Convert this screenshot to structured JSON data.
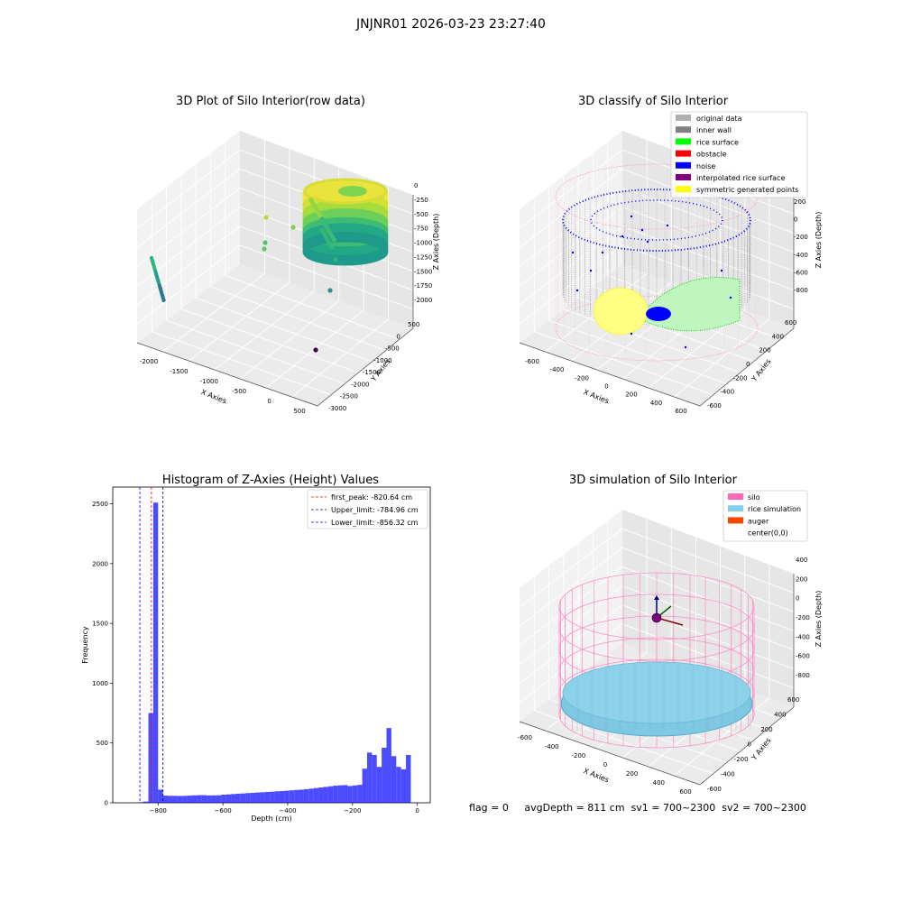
{
  "suptitle": "JNJNR01 2026-03-23 23:27:40",
  "panels": {
    "raw": {
      "title": "3D Plot of Silo Interior(row data)",
      "xlabel": "X Axies",
      "ylabel": "Y Axies",
      "zlabel": "Z Axies (Depth)",
      "xticks": [
        "-2000",
        "-1500",
        "-1000",
        "-500",
        "0",
        "500"
      ],
      "yticks": [
        "500",
        "0",
        "-500",
        "-1000",
        "-1500",
        "-2000",
        "-2500",
        "-3000"
      ],
      "zticks": [
        "0",
        "-250",
        "-500",
        "-750",
        "-1000",
        "-1250",
        "-1500",
        "-1750",
        "-2000"
      ]
    },
    "classify": {
      "title": "3D classify of Silo Interior",
      "xlabel": "X Axies",
      "ylabel": "Y Axies",
      "zlabel": "Z Axies (Depth)",
      "xticks": [
        "-600",
        "-400",
        "-200",
        "0",
        "200",
        "400",
        "600"
      ],
      "yticks": [
        "600",
        "400",
        "200",
        "0",
        "-200",
        "-400",
        "-600"
      ],
      "zticks": [
        "200",
        "0",
        "-200",
        "-400",
        "-600",
        "-800"
      ],
      "legend": [
        {
          "label": "original data",
          "color": "#b0b0b0"
        },
        {
          "label": "inner wall",
          "color": "#808080"
        },
        {
          "label": "rice surface",
          "color": "#00ff00"
        },
        {
          "label": "obstacle",
          "color": "#ff0000"
        },
        {
          "label": "noise",
          "color": "#0000ff"
        },
        {
          "label": "interpolated rice surface",
          "color": "#800080"
        },
        {
          "label": "symmetric generated points",
          "color": "#ffff00"
        }
      ]
    },
    "simulation": {
      "title": "3D simulation of Silo Interior",
      "xlabel": "X Axies",
      "ylabel": "Y Axies",
      "zlabel": "Z Axies (Depth)",
      "xticks": [
        "-600",
        "-400",
        "-200",
        "0",
        "200",
        "400",
        "600"
      ],
      "yticks": [
        "600",
        "400",
        "200",
        "0",
        "-200",
        "-400",
        "-600"
      ],
      "zticks": [
        "400",
        "200",
        "0",
        "-200",
        "-400",
        "-600",
        "-800"
      ],
      "legend": [
        {
          "label": "silo",
          "color": "#ff69b4"
        },
        {
          "label": "rice simulation",
          "color": "#87ceeb"
        },
        {
          "label": "auger",
          "color": "#ff4500"
        },
        {
          "label": "center(0,0)",
          "color": "none"
        }
      ]
    }
  },
  "footer": {
    "flag": "flag = 0",
    "avg_depth": "avgDepth = 811 cm",
    "sv1": "sv1 = 700~2300",
    "sv2": "sv2 = 700~2300"
  },
  "chart_data": [
    {
      "type": "histogram",
      "title": "Histogram of Z-Axies (Height) Values",
      "xlabel": "Depth (cm)",
      "ylabel": "Frequency",
      "xlim": [
        -940,
        40
      ],
      "ylim": [
        0,
        2640
      ],
      "xticks": [
        -800,
        -600,
        -400,
        -200,
        0
      ],
      "yticks": [
        0,
        500,
        1000,
        1500,
        2000,
        2500
      ],
      "bar_color": "#0000ff",
      "bin_left_edges": [
        -860,
        -845,
        -830,
        -815,
        -800,
        -785,
        -770,
        -755,
        -740,
        -725,
        -710,
        -695,
        -680,
        -665,
        -650,
        -635,
        -620,
        -605,
        -590,
        -575,
        -560,
        -545,
        -530,
        -515,
        -500,
        -485,
        -470,
        -455,
        -440,
        -425,
        -410,
        -395,
        -380,
        -365,
        -350,
        -335,
        -320,
        -305,
        -290,
        -275,
        -260,
        -245,
        -230,
        -215,
        -200,
        -185,
        -170,
        -155,
        -140,
        -125,
        -110,
        -95,
        -80,
        -65,
        -50,
        -35,
        -20,
        -5
      ],
      "bin_width": 15,
      "counts": [
        5,
        10,
        750,
        2510,
        110,
        60,
        58,
        58,
        57,
        58,
        60,
        62,
        64,
        64,
        61,
        62,
        63,
        68,
        70,
        73,
        76,
        78,
        81,
        83,
        86,
        88,
        91,
        93,
        96,
        98,
        101,
        104,
        107,
        110,
        114,
        118,
        123,
        128,
        133,
        138,
        143,
        146,
        148,
        140,
        145,
        150,
        285,
        420,
        400,
        300,
        460,
        625,
        390,
        300,
        280,
        400,
        0,
        0
      ],
      "vlines": [
        {
          "label": "first_peak: -820.64 cm",
          "x": -820.64,
          "color": "#ff0000"
        },
        {
          "label": "Upper_limit: -784.96 cm",
          "x": -784.96,
          "color": "#00008b"
        },
        {
          "label": "Lower_limit: -856.32 cm",
          "x": -856.32,
          "color": "#0000ff"
        }
      ]
    }
  ]
}
